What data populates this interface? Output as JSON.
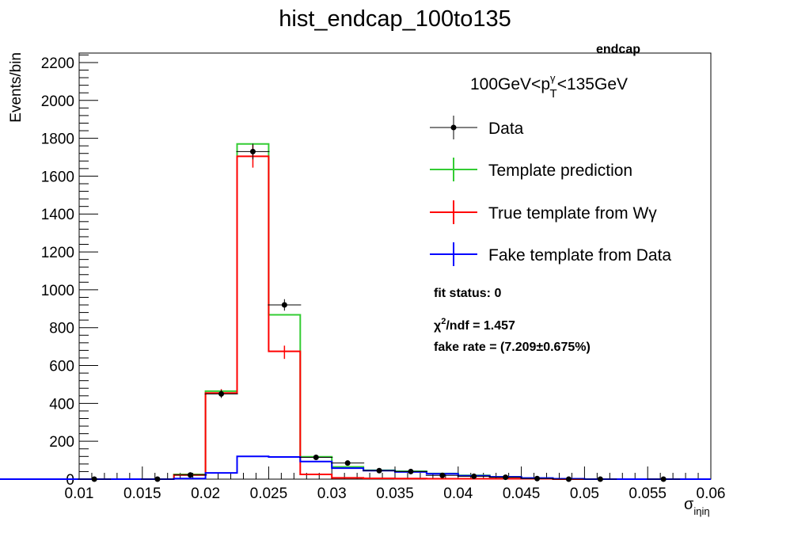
{
  "chart_data": {
    "type": "histogram",
    "title": "hist_endcap_100to135",
    "region_label": "endcap",
    "pt_range_label": {
      "prefix": "100GeV<p",
      "sub": "T",
      "sup": "γ",
      "suffix": "<135GeV"
    },
    "xlabel": {
      "main": "σ",
      "sub": "iηiη"
    },
    "ylabel": "Events/bin",
    "xlim": [
      0.01,
      0.06
    ],
    "ylim": [
      0,
      2250
    ],
    "x_ticks": [
      0.01,
      0.015,
      0.02,
      0.025,
      0.03,
      0.035,
      0.04,
      0.045,
      0.05,
      0.055,
      0.06
    ],
    "x_tick_labels": [
      "0.01",
      "0.015",
      "0.02",
      "0.025",
      "0.03",
      "0.035",
      "0.04",
      "0.045",
      "0.05",
      "0.055",
      "0.06"
    ],
    "y_ticks": [
      0,
      200,
      400,
      600,
      800,
      1000,
      1200,
      1400,
      1600,
      1800,
      2000,
      2200
    ],
    "y_tick_labels": [
      "0",
      "200",
      "400",
      "600",
      "800",
      "1000",
      "1200",
      "1400",
      "1600",
      "1800",
      "2000",
      "2200"
    ],
    "bin_edges": [
      0.0,
      0.0175,
      0.02,
      0.0225,
      0.025,
      0.0275,
      0.03,
      0.0325,
      0.035,
      0.0375,
      0.04,
      0.0425,
      0.045,
      0.0475,
      0.05,
      0.06
    ],
    "colors": {
      "data": "#000000",
      "template": "#33cc33",
      "true": "#ff0000",
      "fake": "#0000ff"
    },
    "series": [
      {
        "name": "Template prediction",
        "key": "template",
        "values": [
          0,
          25,
          465,
          1770,
          868,
          118,
          65,
          47,
          42,
          30,
          20,
          12,
          6,
          2,
          0
        ]
      },
      {
        "name": "True template from Wγ",
        "key": "true",
        "values": [
          0,
          22,
          455,
          1705,
          675,
          25,
          7,
          4,
          3,
          2,
          2,
          2,
          2,
          0,
          0
        ]
      },
      {
        "name": "Fake template from Data",
        "key": "fake",
        "values": [
          0,
          3,
          33,
          120,
          117,
          93,
          58,
          45,
          38,
          28,
          18,
          12,
          6,
          2,
          0
        ]
      }
    ],
    "true_errors": [
      {
        "x": 0.02125,
        "y": 455,
        "err": 20
      },
      {
        "x": 0.02375,
        "y": 1705,
        "err": 60
      },
      {
        "x": 0.02625,
        "y": 670,
        "err": 35
      }
    ],
    "data_points": [
      {
        "x": 0.0112,
        "y": 0
      },
      {
        "x": 0.0162,
        "y": 0
      },
      {
        "x": 0.0188,
        "y": 22
      },
      {
        "x": 0.02125,
        "y": 450
      },
      {
        "x": 0.02375,
        "y": 1730
      },
      {
        "x": 0.02625,
        "y": 920
      },
      {
        "x": 0.02875,
        "y": 115
      },
      {
        "x": 0.03125,
        "y": 85
      },
      {
        "x": 0.03375,
        "y": 45
      },
      {
        "x": 0.03625,
        "y": 40
      },
      {
        "x": 0.03875,
        "y": 20
      },
      {
        "x": 0.04125,
        "y": 15
      },
      {
        "x": 0.04375,
        "y": 10
      },
      {
        "x": 0.04625,
        "y": 3
      },
      {
        "x": 0.04875,
        "y": 0
      },
      {
        "x": 0.05125,
        "y": 0
      },
      {
        "x": 0.05625,
        "y": 0
      }
    ],
    "legend": [
      {
        "label": "Data",
        "key": "data"
      },
      {
        "label": "Template prediction",
        "key": "template"
      },
      {
        "label": "True template from Wγ",
        "key": "true"
      },
      {
        "label": "Fake template from Data",
        "key": "fake"
      }
    ],
    "annotations": {
      "fit_status": "fit status: 0",
      "chi2": {
        "prefix": "χ",
        "sup": "2",
        "suffix": "/ndf = 1.457"
      },
      "fake_rate": "fake rate = (7.209±0.675%)"
    }
  }
}
